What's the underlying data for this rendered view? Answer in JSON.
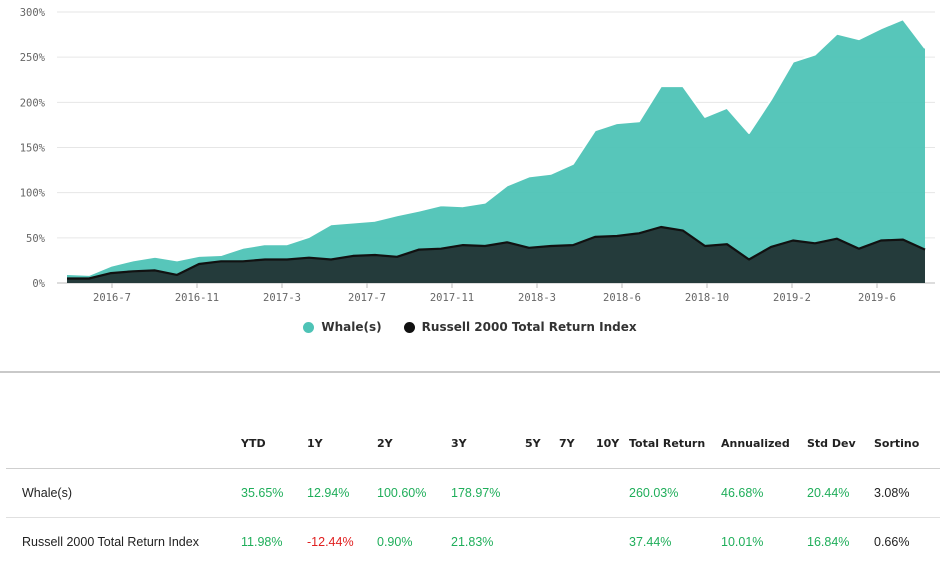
{
  "chart_data": {
    "type": "area",
    "x_ticks": [
      "2016-7",
      "2016-11",
      "2017-3",
      "2017-7",
      "2017-11",
      "2018-3",
      "2018-6",
      "2018-10",
      "2019-2",
      "2019-6"
    ],
    "y_ticks": [
      "300%",
      "250%",
      "200%",
      "150%",
      "100%",
      "50%",
      "0%"
    ],
    "ylim": [
      0,
      300
    ],
    "y_unit": "%",
    "grid": true,
    "legend_position": "bottom-center",
    "series": [
      {
        "name": "Whale(s)",
        "color": "#4ec3b6",
        "values": [
          10,
          9,
          19,
          25,
          29,
          25,
          30,
          31,
          39,
          43,
          43,
          51,
          65,
          67,
          69,
          75,
          80,
          86,
          85,
          89,
          108,
          118,
          121,
          132,
          169,
          177,
          179,
          218,
          218,
          184,
          194,
          166,
          203,
          245,
          253,
          276,
          270,
          282,
          292,
          260
        ]
      },
      {
        "name": "Russell 2000 Total Return Index",
        "color": "#243b3b",
        "values": [
          5,
          5,
          11,
          13,
          14,
          9,
          21,
          24,
          24,
          26,
          26,
          28,
          26,
          30,
          31,
          29,
          37,
          38,
          42,
          41,
          45,
          39,
          41,
          42,
          51,
          52,
          55,
          62,
          58,
          41,
          43,
          26,
          40,
          47,
          44,
          49,
          38,
          47,
          48,
          37
        ]
      }
    ]
  },
  "table": {
    "headers": [
      "",
      "YTD",
      "1Y",
      "2Y",
      "3Y",
      "5Y",
      "7Y",
      "10Y",
      "Total Return",
      "Annualized",
      "Std Dev",
      "Sortino"
    ],
    "rows": [
      {
        "name": "Whale(s)",
        "cells": [
          {
            "v": "35.65%",
            "c": "pos"
          },
          {
            "v": "12.94%",
            "c": "pos"
          },
          {
            "v": "100.60%",
            "c": "pos"
          },
          {
            "v": "178.97%",
            "c": "pos"
          },
          {
            "v": "",
            "c": "neu"
          },
          {
            "v": "",
            "c": "neu"
          },
          {
            "v": "",
            "c": "neu"
          },
          {
            "v": "260.03%",
            "c": "pos"
          },
          {
            "v": "46.68%",
            "c": "pos"
          },
          {
            "v": "20.44%",
            "c": "pos"
          },
          {
            "v": "3.08%",
            "c": "neu"
          }
        ]
      },
      {
        "name": "Russell 2000 Total Return Index",
        "cells": [
          {
            "v": "11.98%",
            "c": "pos"
          },
          {
            "v": "-12.44%",
            "c": "neg"
          },
          {
            "v": "0.90%",
            "c": "pos"
          },
          {
            "v": "21.83%",
            "c": "pos"
          },
          {
            "v": "",
            "c": "neu"
          },
          {
            "v": "",
            "c": "neu"
          },
          {
            "v": "",
            "c": "neu"
          },
          {
            "v": "37.44%",
            "c": "pos"
          },
          {
            "v": "10.01%",
            "c": "pos"
          },
          {
            "v": "16.84%",
            "c": "pos"
          },
          {
            "v": "0.66%",
            "c": "neu"
          }
        ]
      }
    ]
  }
}
